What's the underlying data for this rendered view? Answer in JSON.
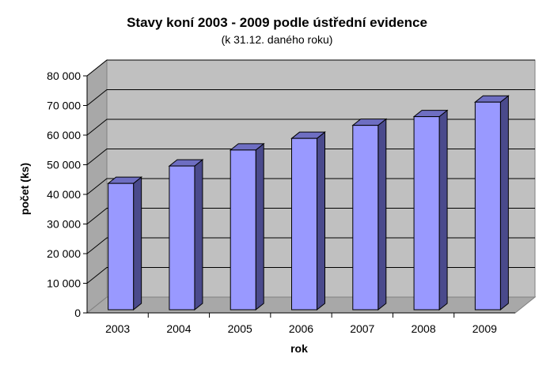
{
  "chart_data": {
    "type": "bar",
    "title": "Stavy koní 2003 - 2009 podle ústřední evidence",
    "subtitle": "(k 31.12. daného roku)",
    "xlabel": "rok",
    "ylabel": "počet (ks)",
    "categories": [
      "2003",
      "2004",
      "2005",
      "2006",
      "2007",
      "2008",
      "2009"
    ],
    "series": [
      {
        "values": [
          43500,
          49500,
          55000,
          59000,
          63500,
          66500,
          71500
        ]
      }
    ],
    "ylim": [
      0,
      80000
    ],
    "y_ticks": [
      0,
      10000,
      20000,
      30000,
      40000,
      50000,
      60000,
      70000,
      80000
    ],
    "y_tick_labels": [
      "0",
      "10 000",
      "20 000",
      "30 000",
      "40 000",
      "50 000",
      "60 000",
      "70 000",
      "80 000"
    ],
    "grid": true,
    "style": "3d-bar",
    "colors": {
      "bar_front": "#9999ff",
      "bar_side": "#4a4a8c",
      "bar_top": "#6e6ec2",
      "bar_outline": "#000000",
      "plot_wall": "#c0c0c0",
      "plot_floor": "#a8a8a8",
      "gridline": "#000000"
    }
  }
}
